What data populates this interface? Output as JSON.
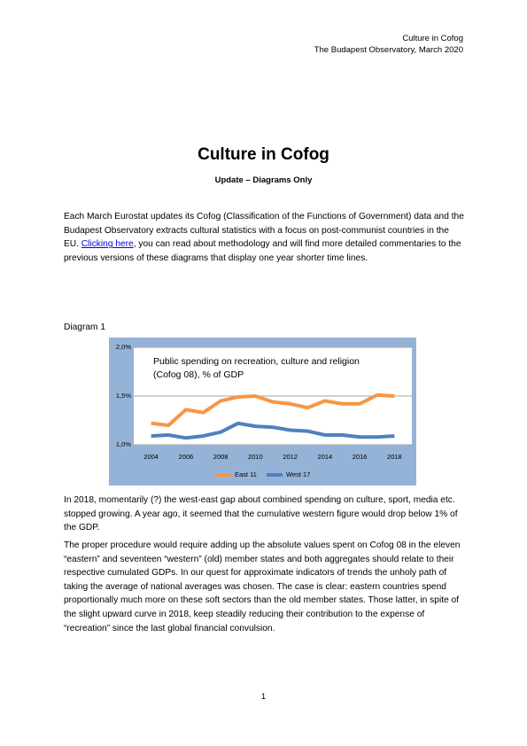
{
  "header": {
    "line1": "Culture in Cofog",
    "line2": "The Budapest Observatory, March 2020"
  },
  "title": "Culture in Cofog",
  "subtitle": "Update – Diagrams Only",
  "intro": {
    "before": "Each March Eurostat updates its Cofog (Classification of the Functions of Government) data and the Budapest Observatory extracts cultural statistics with a focus on post-communist countries in the EU. ",
    "link": "Clicking here",
    "after": ", you can read about methodology and will find more detailed commentaries to the previous versions of these diagrams that display one year shorter time lines."
  },
  "diagram_label": "Diagram 1",
  "chart_data": {
    "type": "line",
    "title": "Public spending on recreation, culture and religion (Cofog 08), % of GDP",
    "x": [
      2004,
      2005,
      2006,
      2007,
      2008,
      2009,
      2010,
      2011,
      2012,
      2013,
      2014,
      2015,
      2016,
      2017,
      2018
    ],
    "xlim": [
      2003,
      2019
    ],
    "xticks": [
      2004,
      2006,
      2008,
      2010,
      2012,
      2014,
      2016,
      2018
    ],
    "ylim": [
      1.0,
      2.0
    ],
    "yticks": [
      {
        "value": 1.0,
        "label": "1,0%"
      },
      {
        "value": 1.5,
        "label": "1,5%"
      },
      {
        "value": 2.0,
        "label": "2,0%"
      }
    ],
    "grid": true,
    "legend": "bottom",
    "series": [
      {
        "name": "East 11",
        "color": "#f79646",
        "values": [
          1.22,
          1.2,
          1.36,
          1.33,
          1.45,
          1.49,
          1.5,
          1.44,
          1.42,
          1.38,
          1.45,
          1.42,
          1.42,
          1.51,
          1.5
        ]
      },
      {
        "name": "West 17",
        "color": "#4f81bd",
        "values": [
          1.09,
          1.1,
          1.07,
          1.09,
          1.13,
          1.22,
          1.19,
          1.18,
          1.15,
          1.14,
          1.1,
          1.1,
          1.08,
          1.08,
          1.09
        ]
      }
    ]
  },
  "paragraphs": [
    "In 2018, momentarily (?) the west-east gap about combined spending on culture, sport, media etc. stopped growing.  A year ago, it seemed that the cumulative western figure would drop below 1% of the GDP.",
    "The proper procedure would require adding up the absolute values spent on Cofog 08 in the eleven “eastern” and seventeen “western” (old) member states and both aggregates should relate to their respective cumulated GDPs. In our quest for approximate indicators of trends the unholy path of taking the average of national averages was chosen. The case is clear: eastern countries spend proportionally much more on these soft sectors than the old member states. Those latter, in spite of the slight upward curve in 2018, keep steadily reducing their contribution to the expense of “recreation” since the last global financial convulsion."
  ],
  "page_number": "1"
}
